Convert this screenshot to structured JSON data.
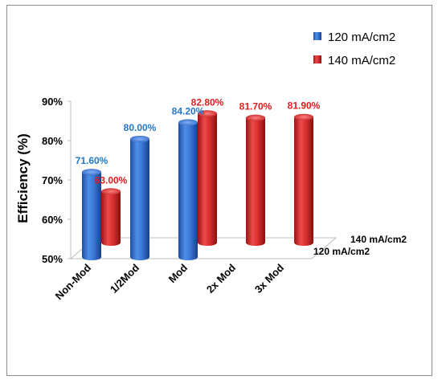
{
  "chart_data": {
    "type": "bar",
    "title": "",
    "ylabel": "Efficiency (%)",
    "xlabel": "",
    "categories": [
      "Non-Mod",
      "1/2Mod",
      "Mod",
      "2x Mod",
      "3x Mod"
    ],
    "y_ticks": [
      "50%",
      "60%",
      "70%",
      "80%",
      "90%"
    ],
    "ylim": [
      50,
      90
    ],
    "series": [
      {
        "name": "120 mA/cm2",
        "color": "#2e6fd0",
        "label_color": "#1f78c8",
        "values": [
          71.6,
          80.0,
          84.2,
          null,
          null
        ],
        "labels": [
          "71.60%",
          "80.00%",
          "84.20%",
          null,
          null
        ]
      },
      {
        "name": "140 mA/cm2",
        "color": "#d42a2a",
        "label_color": "#e01c1c",
        "values": [
          63.0,
          null,
          82.8,
          81.7,
          81.9
        ],
        "labels": [
          "63.00%",
          null,
          "82.80%",
          "81.70%",
          "81.90%"
        ]
      }
    ],
    "depth_labels": [
      "140 mA/cm2",
      "120 mA/cm2"
    ],
    "legend_position": "top-right",
    "grid": false
  }
}
